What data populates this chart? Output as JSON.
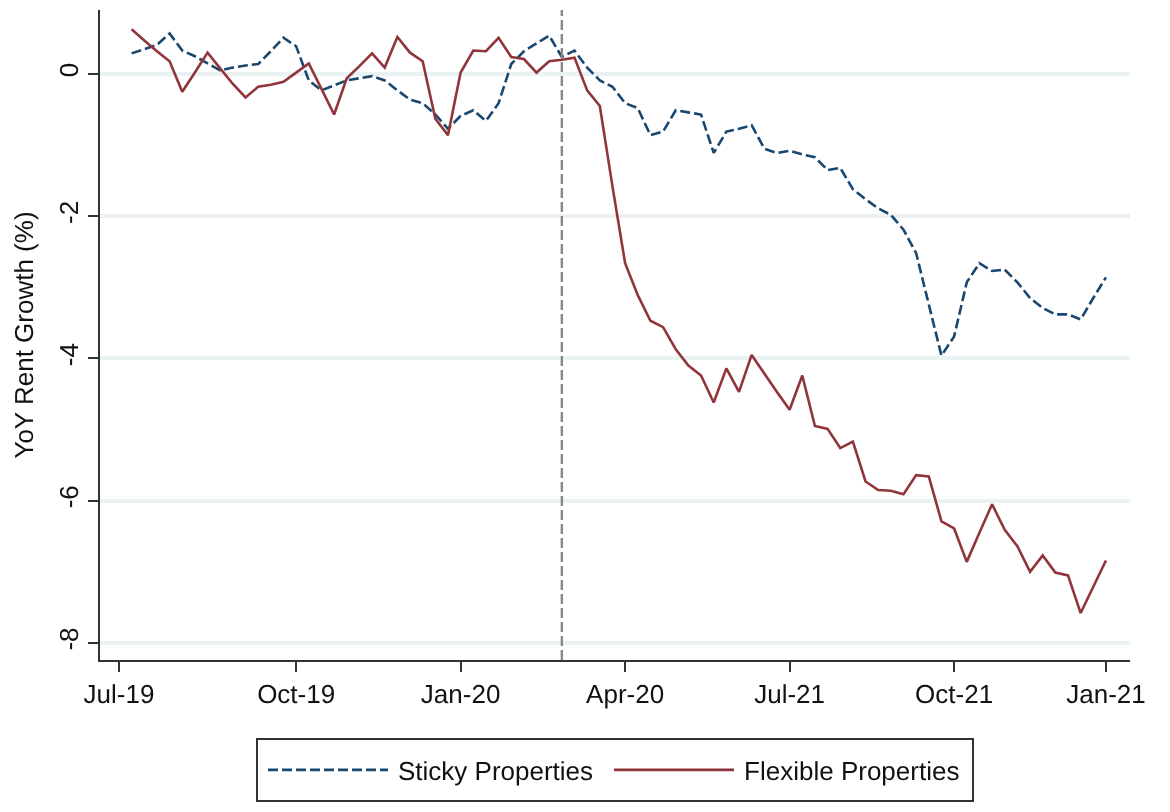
{
  "chart_data": {
    "type": "line",
    "ylabel": "YoY Rent Growth (%)",
    "ylim": [
      -8.24,
      0.9
    ],
    "categories": [
      "Jul-19",
      null,
      null,
      null,
      null,
      null,
      null,
      null,
      null,
      null,
      null,
      null,
      null,
      null,
      "Oct-19",
      null,
      null,
      null,
      null,
      null,
      null,
      null,
      null,
      null,
      null,
      null,
      null,
      "Jan-20",
      null,
      null,
      null,
      null,
      null,
      null,
      null,
      null,
      null,
      null,
      null,
      null,
      "Apr-20",
      null,
      null,
      null,
      null,
      null,
      null,
      null,
      null,
      null,
      null,
      null,
      null,
      "Jul-21",
      null,
      null,
      null,
      null,
      null,
      null,
      null,
      null,
      null,
      null,
      null,
      null,
      "Oct-21",
      null,
      null,
      null,
      null,
      null,
      null,
      null,
      null,
      null,
      null,
      null,
      "Jan-21"
    ],
    "yticks": [
      0,
      -2,
      -4,
      -6,
      -8
    ],
    "grid": "y",
    "legend": "bottom",
    "marker": "none",
    "series": [
      {
        "name": "Sticky Properties",
        "color": "#1a476f",
        "line_style": "dashed",
        "values": [
          null,
          0.29,
          0.35,
          0.41,
          0.57,
          0.33,
          0.25,
          0.15,
          0.05,
          0.09,
          0.12,
          0.14,
          0.32,
          0.51,
          0.39,
          -0.09,
          -0.23,
          -0.16,
          -0.09,
          -0.06,
          -0.03,
          -0.09,
          -0.23,
          -0.36,
          -0.41,
          -0.57,
          -0.77,
          -0.59,
          -0.51,
          -0.66,
          -0.41,
          0.14,
          0.32,
          0.43,
          0.54,
          0.24,
          0.33,
          0.09,
          -0.09,
          -0.18,
          -0.41,
          -0.48,
          -0.86,
          -0.81,
          -0.51,
          -0.54,
          -0.57,
          -1.11,
          -0.81,
          -0.77,
          -0.72,
          -1.05,
          -1.11,
          -1.08,
          -1.13,
          -1.17,
          -1.35,
          -1.32,
          -1.62,
          -1.76,
          -1.89,
          -1.98,
          -2.19,
          -2.52,
          -3.24,
          -3.96,
          -3.69,
          -2.93,
          -2.66,
          -2.77,
          -2.75,
          -2.93,
          -3.15,
          -3.29,
          -3.38,
          -3.38,
          -3.45,
          -3.15,
          -2.86
        ]
      },
      {
        "name": "Flexible Properties",
        "color": "#90353b",
        "line_style": "solid",
        "values": [
          null,
          0.63,
          0.47,
          0.32,
          0.18,
          -0.25,
          0.02,
          0.3,
          0.08,
          -0.14,
          -0.33,
          -0.18,
          -0.15,
          -0.11,
          0.02,
          0.15,
          -0.21,
          -0.57,
          -0.06,
          0.11,
          0.29,
          0.09,
          0.52,
          0.3,
          0.18,
          -0.63,
          -0.86,
          0.02,
          0.33,
          0.32,
          0.51,
          0.24,
          0.21,
          0.02,
          0.18,
          0.2,
          0.23,
          -0.23,
          -0.45,
          -1.58,
          -2.66,
          -3.11,
          -3.47,
          -3.56,
          -3.87,
          -4.1,
          -4.24,
          -4.62,
          -4.14,
          -4.47,
          -3.95,
          -4.21,
          -4.47,
          -4.72,
          -4.24,
          -4.95,
          -4.99,
          -5.26,
          -5.17,
          -5.73,
          -5.85,
          -5.86,
          -5.91,
          -5.64,
          -5.66,
          -6.29,
          -6.39,
          -6.86,
          -6.45,
          -6.05,
          -6.41,
          -6.64,
          -7.0,
          -6.77,
          -7.01,
          -7.05,
          -7.58,
          -7.21,
          -6.84
        ]
      }
    ]
  }
}
